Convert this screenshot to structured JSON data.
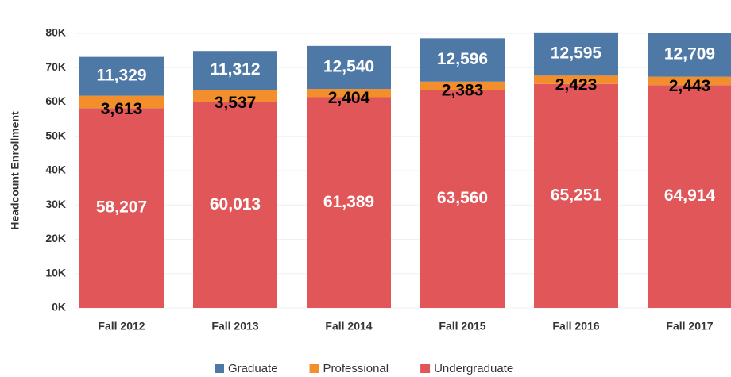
{
  "chart_data": {
    "type": "bar",
    "stacked": true,
    "y_label": "Headcount Enrollment",
    "categories": [
      "Fall 2012",
      "Fall 2013",
      "Fall 2014",
      "Fall 2015",
      "Fall 2016",
      "Fall 2017"
    ],
    "series": [
      {
        "name": "Graduate",
        "color": "#4e79a7",
        "values": [
          11329,
          11312,
          12540,
          12596,
          12595,
          12709
        ],
        "value_labels": [
          "11,329",
          "11,312",
          "12,540",
          "12,596",
          "12,595",
          "12,709"
        ]
      },
      {
        "name": "Professional",
        "color": "#f28e2b",
        "values": [
          3613,
          3537,
          2404,
          2383,
          2423,
          2443
        ],
        "value_labels": [
          "3,613",
          "3,537",
          "2,404",
          "2,383",
          "2,423",
          "2,443"
        ]
      },
      {
        "name": "Undergraduate",
        "color": "#e15759",
        "values": [
          58207,
          60013,
          61389,
          63560,
          65251,
          64914
        ],
        "value_labels": [
          "58,207",
          "60,013",
          "61,389",
          "63,560",
          "65,251",
          "64,914"
        ]
      }
    ],
    "ylim": [
      0,
      80000
    ],
    "yticks": [
      {
        "value": 0,
        "label": "0K"
      },
      {
        "value": 10000,
        "label": "10K"
      },
      {
        "value": 20000,
        "label": "20K"
      },
      {
        "value": 30000,
        "label": "30K"
      },
      {
        "value": 40000,
        "label": "40K"
      },
      {
        "value": 50000,
        "label": "50K"
      },
      {
        "value": 60000,
        "label": "60K"
      },
      {
        "value": 70000,
        "label": "70K"
      },
      {
        "value": 80000,
        "label": "80K"
      }
    ],
    "grid": true,
    "legend": "bottom"
  }
}
